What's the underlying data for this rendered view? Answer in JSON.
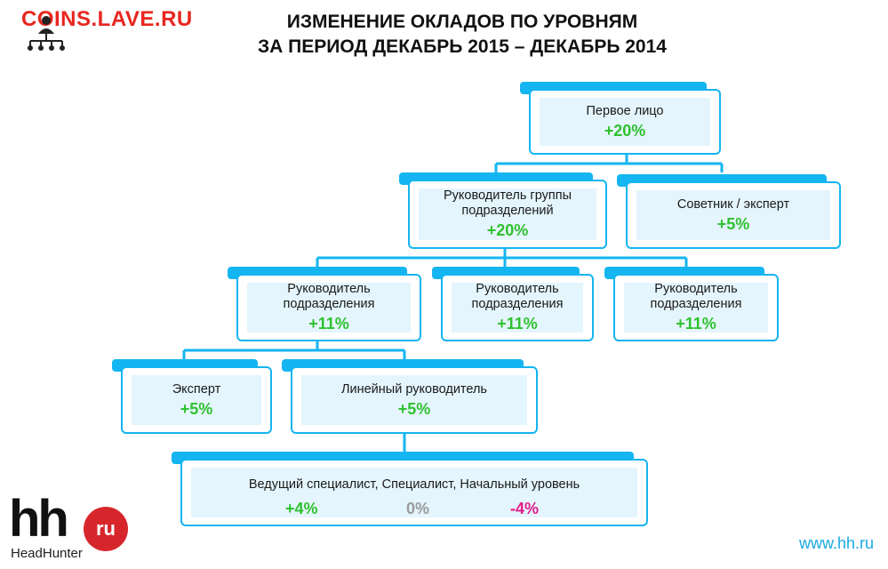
{
  "watermark": "COINS.LAVE.RU",
  "title": {
    "line1": "ИЗМЕНЕНИЕ ОКЛАДОВ ПО УРОВНЯМ",
    "line2": "ЗА ПЕРИОД  ДЕКАБРЬ 2015 – ДЕКАБРЬ 2014"
  },
  "nodes": {
    "first_person": {
      "label": "Первое лицо",
      "value": "+20%"
    },
    "group_head": {
      "label": "Руководитель группы подразделений",
      "value": "+20%"
    },
    "advisor": {
      "label": "Советник / эксперт",
      "value": "+5%"
    },
    "dept_head_1": {
      "label": "Руководитель подразделения",
      "value": "+11%"
    },
    "dept_head_2": {
      "label": "Руководитель подразделения",
      "value": "+11%"
    },
    "dept_head_3": {
      "label": "Руководитель подразделения",
      "value": "+11%"
    },
    "expert": {
      "label": "Эксперт",
      "value": "+5%"
    },
    "line_manager": {
      "label": "Линейный руководитель",
      "value": "+5%"
    },
    "specialists": {
      "label": "Ведущий специалист, Специалист, Начальный уровень",
      "values": [
        "+4%",
        "0%",
        "-4%"
      ]
    }
  },
  "colors": {
    "accent": "#14b5f0",
    "positive": "#2fc12f",
    "neutral": "#9a9a9a",
    "negative": "#e21c8a",
    "connector": "#14b5f0"
  },
  "logo": {
    "mark": "hh",
    "badge": "ru",
    "brand": "HeadHunter"
  },
  "footer": {
    "site": "www.hh.ru"
  }
}
